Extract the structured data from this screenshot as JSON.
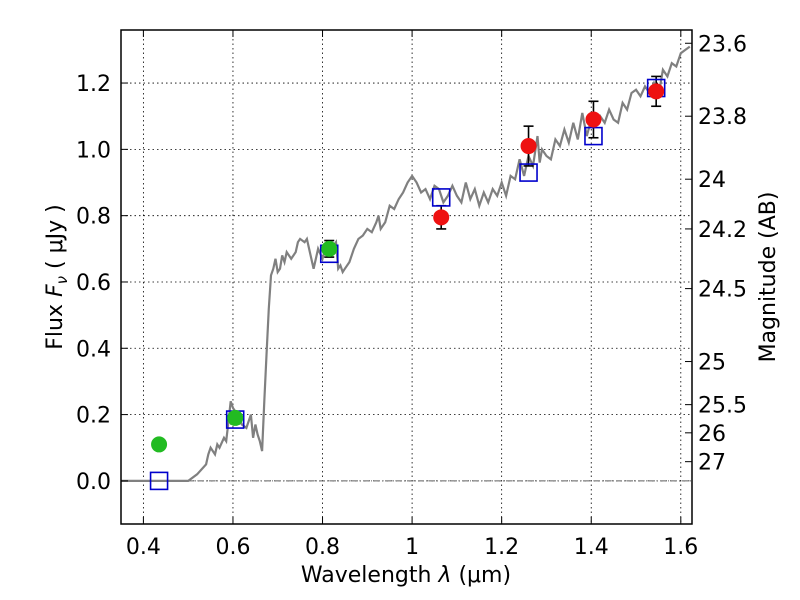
{
  "chart_data": {
    "type": "scatter",
    "xlabel_prefix": "Wavelength",
    "xlabel_symbol": "λ",
    "xlabel_unit": "(μm)",
    "ylabel_prefix": "Flux",
    "ylabel_symbol": "F",
    "ylabel_subscript": "ν",
    "ylabel_unit": "( μJy )",
    "y2label": "Magnitude (AB)",
    "xlim": [
      0.35,
      1.625
    ],
    "ylim": [
      -0.13,
      1.36
    ],
    "x_ticks": [
      {
        "value": 0.4,
        "label": "0.4"
      },
      {
        "value": 0.6,
        "label": "0.6"
      },
      {
        "value": 0.8,
        "label": "0.8"
      },
      {
        "value": 1.0,
        "label": "1"
      },
      {
        "value": 1.2,
        "label": "1.2"
      },
      {
        "value": 1.4,
        "label": "1.4"
      },
      {
        "value": 1.6,
        "label": "1.6"
      }
    ],
    "y_ticks": [
      {
        "value": 0.0,
        "label": "0.0"
      },
      {
        "value": 0.2,
        "label": "0.2"
      },
      {
        "value": 0.4,
        "label": "0.4"
      },
      {
        "value": 0.6,
        "label": "0.6"
      },
      {
        "value": 0.8,
        "label": "0.8"
      },
      {
        "value": 1.0,
        "label": "1.0"
      },
      {
        "value": 1.2,
        "label": "1.2"
      }
    ],
    "mag_ticks": [
      {
        "flux": 1.32,
        "label": "23.6"
      },
      {
        "flux": 1.1,
        "label": "23.8"
      },
      {
        "flux": 0.91,
        "label": "24"
      },
      {
        "flux": 0.76,
        "label": "24.2"
      },
      {
        "flux": 0.58,
        "label": "24.5"
      },
      {
        "flux": 0.36,
        "label": "25"
      },
      {
        "flux": 0.23,
        "label": "25.5"
      },
      {
        "flux": 0.145,
        "label": "26"
      },
      {
        "flux": 0.058,
        "label": "27"
      }
    ],
    "colors": {
      "model_line": "#808080",
      "green_points": "#22bb22",
      "red_points": "#ee1111",
      "model_squares": "#0000cc",
      "errorbars": "#000000",
      "zero_line": "#606060"
    },
    "series": [
      {
        "name": "SED model",
        "kind": "line",
        "x": [
          0.35,
          0.45,
          0.5,
          0.52,
          0.54,
          0.545,
          0.55,
          0.56,
          0.565,
          0.57,
          0.58,
          0.585,
          0.59,
          0.595,
          0.6,
          0.61,
          0.62,
          0.63,
          0.64,
          0.645,
          0.65,
          0.655,
          0.66,
          0.665,
          0.67,
          0.675,
          0.68,
          0.685,
          0.69,
          0.695,
          0.7,
          0.705,
          0.71,
          0.715,
          0.72,
          0.73,
          0.74,
          0.745,
          0.75,
          0.76,
          0.765,
          0.77,
          0.78,
          0.79,
          0.8,
          0.81,
          0.82,
          0.83,
          0.835,
          0.84,
          0.845,
          0.85,
          0.86,
          0.87,
          0.88,
          0.89,
          0.9,
          0.91,
          0.92,
          0.925,
          0.93,
          0.94,
          0.95,
          0.96,
          0.97,
          0.98,
          0.99,
          1.0,
          1.01,
          1.02,
          1.03,
          1.04,
          1.05,
          1.06,
          1.07,
          1.08,
          1.09,
          1.1,
          1.11,
          1.12,
          1.13,
          1.14,
          1.15,
          1.16,
          1.17,
          1.18,
          1.19,
          1.2,
          1.21,
          1.22,
          1.23,
          1.24,
          1.25,
          1.26,
          1.27,
          1.28,
          1.285,
          1.29,
          1.3,
          1.31,
          1.32,
          1.33,
          1.34,
          1.35,
          1.36,
          1.37,
          1.38,
          1.39,
          1.4,
          1.41,
          1.42,
          1.43,
          1.44,
          1.45,
          1.46,
          1.47,
          1.48,
          1.49,
          1.5,
          1.51,
          1.52,
          1.53,
          1.54,
          1.55,
          1.56,
          1.57,
          1.58,
          1.59,
          1.6,
          1.61,
          1.62
        ],
        "y": [
          0.0,
          0.0,
          0.0,
          0.02,
          0.05,
          0.08,
          0.1,
          0.08,
          0.11,
          0.1,
          0.13,
          0.12,
          0.18,
          0.24,
          0.22,
          0.2,
          0.17,
          0.16,
          0.2,
          0.13,
          0.17,
          0.14,
          0.12,
          0.09,
          0.24,
          0.38,
          0.52,
          0.62,
          0.64,
          0.67,
          0.63,
          0.64,
          0.68,
          0.66,
          0.69,
          0.67,
          0.69,
          0.72,
          0.73,
          0.72,
          0.73,
          0.7,
          0.64,
          0.7,
          0.67,
          0.72,
          0.7,
          0.72,
          0.64,
          0.65,
          0.63,
          0.64,
          0.66,
          0.7,
          0.73,
          0.74,
          0.76,
          0.75,
          0.78,
          0.8,
          0.76,
          0.78,
          0.83,
          0.82,
          0.85,
          0.87,
          0.9,
          0.92,
          0.9,
          0.87,
          0.88,
          0.85,
          0.89,
          0.88,
          0.84,
          0.86,
          0.89,
          0.86,
          0.84,
          0.9,
          0.85,
          0.88,
          0.83,
          0.87,
          0.84,
          0.88,
          0.86,
          0.9,
          0.86,
          0.92,
          0.91,
          0.97,
          0.92,
          0.98,
          0.95,
          1.04,
          0.96,
          1.0,
          0.98,
          0.97,
          1.03,
          1.01,
          1.06,
          1.02,
          1.08,
          1.03,
          1.11,
          1.04,
          1.09,
          1.07,
          1.1,
          1.08,
          1.12,
          1.09,
          1.08,
          1.14,
          1.12,
          1.17,
          1.18,
          1.16,
          1.19,
          1.17,
          1.2,
          1.16,
          1.24,
          1.22,
          1.26,
          1.25,
          1.29,
          1.3,
          1.31
        ]
      },
      {
        "name": "green photometry",
        "kind": "errorbar",
        "points": [
          {
            "x": 0.435,
            "y": 0.11,
            "err": 0.015
          },
          {
            "x": 0.605,
            "y": 0.19,
            "err": 0.018
          },
          {
            "x": 0.815,
            "y": 0.7,
            "err": 0.025
          }
        ]
      },
      {
        "name": "red photometry",
        "kind": "errorbar",
        "points": [
          {
            "x": 1.065,
            "y": 0.795,
            "err": 0.035
          },
          {
            "x": 1.26,
            "y": 1.01,
            "err": 0.06
          },
          {
            "x": 1.405,
            "y": 1.09,
            "err": 0.055
          },
          {
            "x": 1.545,
            "y": 1.175,
            "err": 0.045
          }
        ]
      },
      {
        "name": "model band fluxes",
        "kind": "open-square",
        "points": [
          {
            "x": 0.435,
            "y": 0.0
          },
          {
            "x": 0.605,
            "y": 0.185
          },
          {
            "x": 0.815,
            "y": 0.685
          },
          {
            "x": 1.065,
            "y": 0.855
          },
          {
            "x": 1.26,
            "y": 0.93
          },
          {
            "x": 1.405,
            "y": 1.04
          },
          {
            "x": 1.545,
            "y": 1.185
          }
        ]
      }
    ]
  }
}
